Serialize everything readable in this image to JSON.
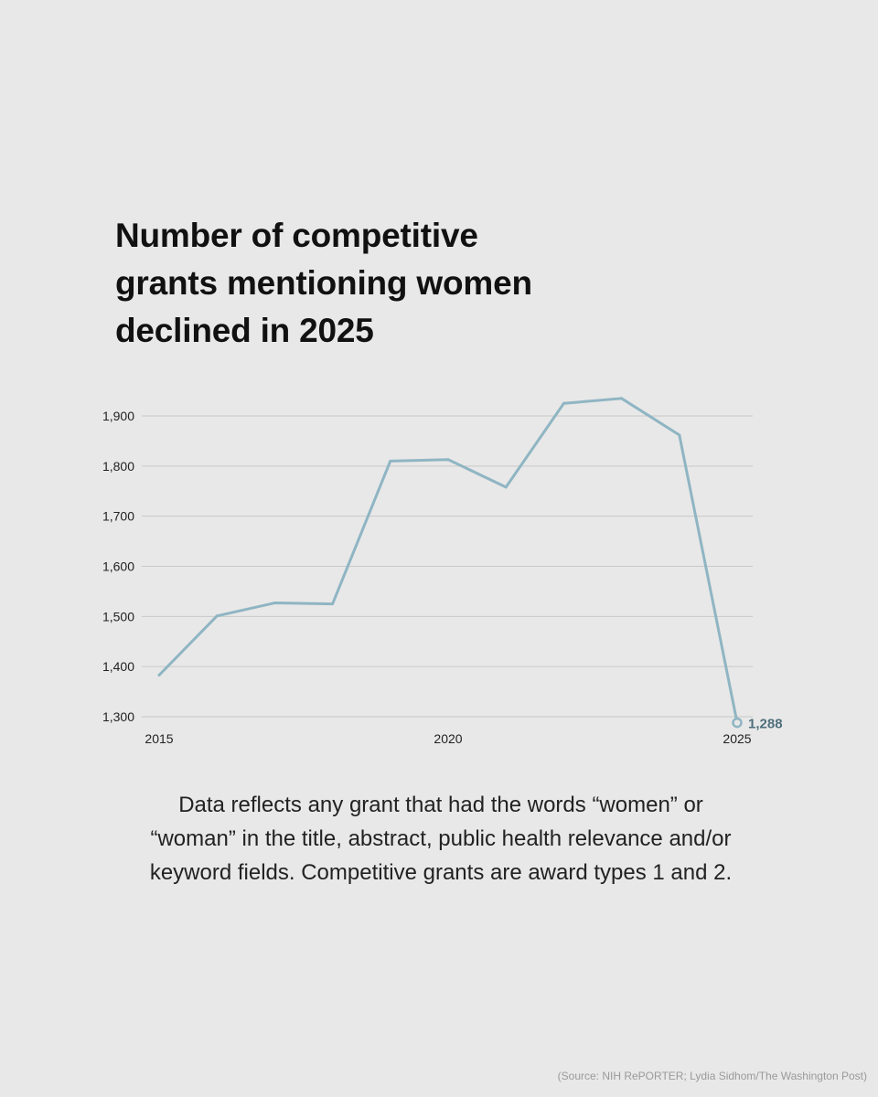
{
  "title_lines": [
    "Number of competitive",
    "grants mentioning women",
    "declined in 2025"
  ],
  "note_lines": [
    "Data reflects any grant that had the words “women” or",
    "“woman” in the title, abstract, public health relevance and/or",
    "keyword fields. Competitive grants are award types 1 and 2."
  ],
  "source": "(Source: NIH RePORTER; Lydia Sidhom/The Washington Post)",
  "colors": {
    "line": "#8fb5c3",
    "label": "#4f6e7c",
    "grid": "#c9c9c9",
    "background": "#e8e8e8"
  },
  "chart_data": {
    "type": "line",
    "title": "Number of competitive grants mentioning women declined in 2025",
    "xlabel": "",
    "ylabel": "",
    "x": [
      2015,
      2016,
      2017,
      2018,
      2019,
      2020,
      2021,
      2022,
      2023,
      2024,
      2025
    ],
    "series": [
      {
        "values": [
          1383,
          1501,
          1527,
          1525,
          1810,
          1813,
          1758,
          1925,
          1935,
          1862,
          1288
        ]
      }
    ],
    "ylim": [
      1300,
      1900
    ],
    "yticks": [
      1900,
      1800,
      1700,
      1600,
      1500,
      1400,
      1300
    ],
    "ytick_labels": [
      "1,900",
      "1,800",
      "1,700",
      "1,600",
      "1,500",
      "1,400",
      "1,300"
    ],
    "xticks": [
      2015,
      2020,
      2025
    ],
    "xtick_labels": [
      "2015",
      "2020",
      "2025"
    ],
    "grid": true,
    "annotation": "1,288"
  }
}
